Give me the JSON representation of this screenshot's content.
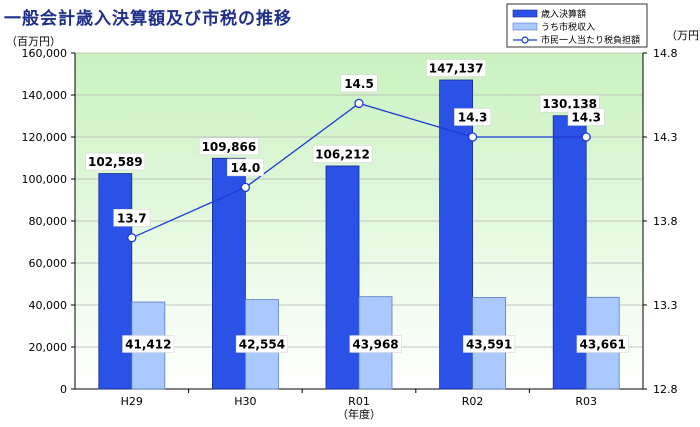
{
  "title": "一般会計歳入決算額及び市税の推移",
  "chart_data": {
    "type": "bar",
    "title": "一般会計歳入決算額及び市税の推移",
    "categories": [
      "H29",
      "H30",
      "R01",
      "R02",
      "R03"
    ],
    "xlabel": "（年度）",
    "ylabel_left": "（百万円）",
    "ylabel_right": "（万円）",
    "ylim_left": [
      0,
      160000
    ],
    "yticks_left": [
      "0",
      "20,000",
      "40,000",
      "60,000",
      "80,000",
      "100,000",
      "120,000",
      "140,000",
      "160,000"
    ],
    "ylim_right": [
      12.8,
      14.8
    ],
    "yticks_right": [
      "12.8",
      "13.3",
      "13.8",
      "14.3",
      "14.8"
    ],
    "series": [
      {
        "name": "歳入決算額",
        "type": "bar",
        "axis": "left",
        "color": "#2b52e6",
        "values": [
          102589,
          109866,
          106212,
          147137,
          130138
        ],
        "labels": [
          "102,589",
          "109,866",
          "106,212",
          "147,137",
          "130,138"
        ]
      },
      {
        "name": "うち市税収入",
        "type": "bar",
        "axis": "left",
        "color": "#a9c9ff",
        "values": [
          41412,
          42554,
          43968,
          43591,
          43661
        ],
        "labels": [
          "41,412",
          "42,554",
          "43,968",
          "43,591",
          "43,661"
        ]
      },
      {
        "name": "市民一人当たり税負担額",
        "type": "line",
        "axis": "right",
        "color": "#1f3ad6",
        "values": [
          13.7,
          14.0,
          14.5,
          14.3,
          14.3
        ],
        "labels": [
          "13.7",
          "14.0",
          "14.5",
          "14.3",
          "14.3"
        ]
      }
    ],
    "legend_position": "top-right",
    "background_gradient": [
      "#c9f2bf",
      "#ffffff"
    ]
  }
}
